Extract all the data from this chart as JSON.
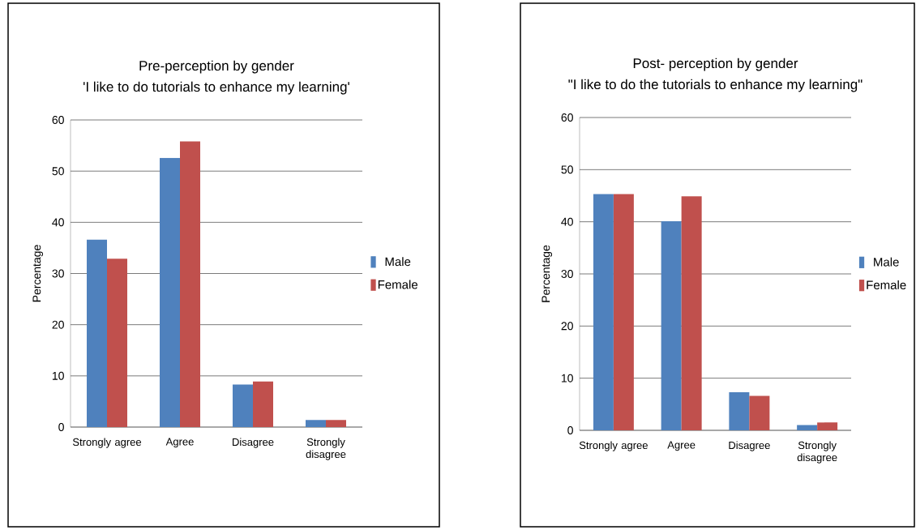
{
  "chart_data": [
    {
      "type": "bar",
      "title": "Pre-perception by gender",
      "subtitle": "'I like to do tutorials to enhance my learning'",
      "ylabel": "Percentage",
      "categories": [
        "Strongly agree",
        "Agree",
        "Disagree",
        "Strongly disagree"
      ],
      "series": [
        {
          "name": "Male",
          "color": "#4f81bd",
          "values": [
            36.6,
            52.6,
            8.3,
            1.4
          ]
        },
        {
          "name": "Female",
          "color": "#c0504d",
          "values": [
            32.9,
            55.8,
            8.9,
            1.4
          ]
        }
      ],
      "ylim": [
        0,
        60
      ],
      "yticks": [
        0,
        10,
        20,
        30,
        40,
        50,
        60
      ],
      "grid": "y",
      "legend": "right"
    },
    {
      "type": "bar",
      "title": "Post- perception by gender",
      "subtitle": "\"I like to do the tutorials to enhance my learning\"",
      "ylabel": "Percentage",
      "categories": [
        "Strongly agree",
        "Agree",
        "Disagree",
        "Strongly disagree"
      ],
      "series": [
        {
          "name": "Male",
          "color": "#4f81bd",
          "values": [
            45.3,
            40.1,
            7.3,
            1.0
          ]
        },
        {
          "name": "Female",
          "color": "#c0504d",
          "values": [
            45.3,
            44.9,
            6.6,
            1.5
          ]
        }
      ],
      "ylim": [
        0,
        60
      ],
      "yticks": [
        0,
        10,
        20,
        30,
        40,
        50,
        60
      ],
      "grid": "y",
      "legend": "right"
    }
  ]
}
